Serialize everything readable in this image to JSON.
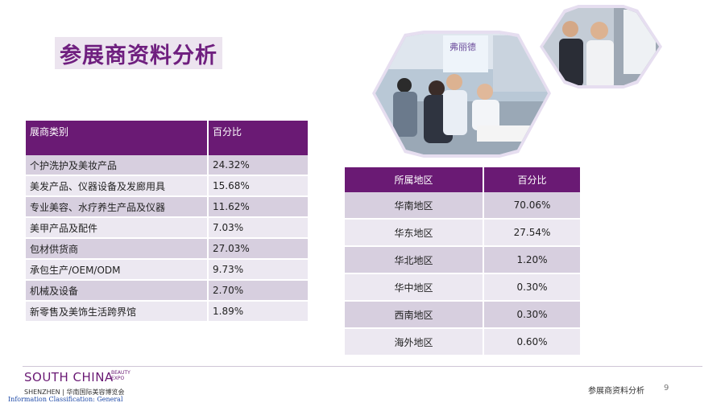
{
  "title": "参展商资料分析",
  "table_category": {
    "headers": [
      "展商类别",
      "百分比"
    ],
    "rows": [
      [
        "个护洗护及美妆产品",
        "24.32%"
      ],
      [
        "美发产品、仪器设备及发廊用具",
        "15.68%"
      ],
      [
        "专业美容、水疗养生产品及仪器",
        "11.62%"
      ],
      [
        "美甲产品及配件",
        "7.03%"
      ],
      [
        "包材供货商",
        "27.03%"
      ],
      [
        "承包生产/OEM/ODM",
        "9.73%"
      ],
      [
        "机械及设备",
        "2.70%"
      ],
      [
        "新零售及美饰生活跨界馆",
        "1.89%"
      ]
    ]
  },
  "table_region": {
    "headers": [
      "所属地区",
      "百分比"
    ],
    "rows": [
      [
        "华南地区",
        "70.06%"
      ],
      [
        "华东地区",
        "27.54%"
      ],
      [
        "华北地区",
        "1.20%"
      ],
      [
        "华中地区",
        "0.30%"
      ],
      [
        "西南地区",
        "0.30%"
      ],
      [
        "海外地区",
        "0.60%"
      ]
    ]
  },
  "photo_sign": "弗丽德",
  "footer": {
    "logo_main": "SOUTH CHINA",
    "logo_small_1": "BEAUTY",
    "logo_small_2": "EXPO",
    "logo_sub": "SHENZHEN | 华南国际美容博览会",
    "classification": "Information Classification: General",
    "section_title": "参展商资料分析",
    "page_number": "9"
  },
  "colors": {
    "header_purple": "#6a1a74",
    "row_dark": "#d7cfdf",
    "row_light": "#ece8f1",
    "title_purple": "#6f1f7f"
  }
}
